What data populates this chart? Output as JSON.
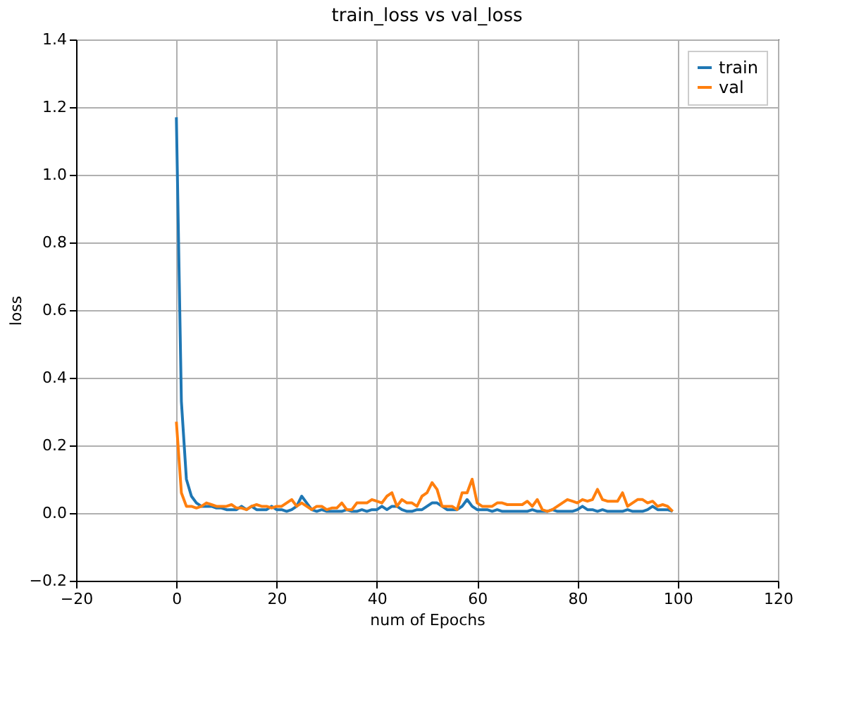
{
  "chart_data": {
    "type": "line",
    "title": "train_loss vs val_loss",
    "xlabel": "num of Epochs",
    "ylabel": "loss",
    "x": [
      0,
      1,
      2,
      3,
      4,
      5,
      6,
      7,
      8,
      9,
      10,
      11,
      12,
      13,
      14,
      15,
      16,
      17,
      18,
      19,
      20,
      21,
      22,
      23,
      24,
      25,
      26,
      27,
      28,
      29,
      30,
      31,
      32,
      33,
      34,
      35,
      36,
      37,
      38,
      39,
      40,
      41,
      42,
      43,
      44,
      45,
      46,
      47,
      48,
      49,
      50,
      51,
      52,
      53,
      54,
      55,
      56,
      57,
      58,
      59,
      60,
      61,
      62,
      63,
      64,
      65,
      66,
      67,
      68,
      69,
      70,
      71,
      72,
      73,
      74,
      75,
      76,
      77,
      78,
      79,
      80,
      81,
      82,
      83,
      84,
      85,
      86,
      87,
      88,
      89,
      90,
      91,
      92,
      93,
      94,
      95,
      96,
      97,
      98,
      99
    ],
    "series": [
      {
        "name": "train",
        "color": "#1f77b4",
        "values": [
          1.17,
          0.33,
          0.1,
          0.05,
          0.03,
          0.02,
          0.02,
          0.02,
          0.015,
          0.015,
          0.01,
          0.01,
          0.01,
          0.02,
          0.01,
          0.02,
          0.01,
          0.01,
          0.01,
          0.02,
          0.01,
          0.01,
          0.005,
          0.01,
          0.02,
          0.05,
          0.03,
          0.01,
          0.005,
          0.01,
          0.005,
          0.005,
          0.005,
          0.005,
          0.01,
          0.005,
          0.005,
          0.01,
          0.005,
          0.01,
          0.01,
          0.02,
          0.01,
          0.02,
          0.02,
          0.01,
          0.005,
          0.005,
          0.01,
          0.01,
          0.02,
          0.03,
          0.03,
          0.02,
          0.01,
          0.01,
          0.01,
          0.02,
          0.04,
          0.02,
          0.01,
          0.01,
          0.01,
          0.005,
          0.01,
          0.005,
          0.005,
          0.005,
          0.005,
          0.005,
          0.005,
          0.01,
          0.005,
          0.005,
          0.005,
          0.01,
          0.005,
          0.005,
          0.005,
          0.005,
          0.01,
          0.02,
          0.01,
          0.01,
          0.005,
          0.01,
          0.005,
          0.005,
          0.005,
          0.005,
          0.01,
          0.005,
          0.005,
          0.005,
          0.01,
          0.02,
          0.01,
          0.01,
          0.01,
          0.005
        ]
      },
      {
        "name": "val",
        "color": "#ff7f0e",
        "values": [
          0.27,
          0.06,
          0.02,
          0.02,
          0.015,
          0.02,
          0.03,
          0.025,
          0.02,
          0.02,
          0.02,
          0.025,
          0.015,
          0.015,
          0.01,
          0.02,
          0.025,
          0.02,
          0.02,
          0.015,
          0.02,
          0.02,
          0.03,
          0.04,
          0.02,
          0.03,
          0.02,
          0.01,
          0.02,
          0.02,
          0.01,
          0.015,
          0.015,
          0.03,
          0.01,
          0.01,
          0.03,
          0.03,
          0.03,
          0.04,
          0.035,
          0.03,
          0.05,
          0.06,
          0.02,
          0.04,
          0.03,
          0.03,
          0.02,
          0.05,
          0.06,
          0.09,
          0.07,
          0.02,
          0.02,
          0.02,
          0.01,
          0.06,
          0.06,
          0.1,
          0.03,
          0.02,
          0.02,
          0.02,
          0.03,
          0.03,
          0.025,
          0.025,
          0.025,
          0.025,
          0.035,
          0.02,
          0.04,
          0.01,
          0.005,
          0.01,
          0.02,
          0.03,
          0.04,
          0.035,
          0.03,
          0.04,
          0.035,
          0.04,
          0.07,
          0.04,
          0.035,
          0.035,
          0.035,
          0.06,
          0.02,
          0.03,
          0.04,
          0.04,
          0.03,
          0.035,
          0.02,
          0.025,
          0.02,
          0.005
        ]
      }
    ],
    "xlim": [
      -20,
      120
    ],
    "xticks": [
      -20,
      0,
      20,
      40,
      60,
      80,
      100,
      120
    ],
    "ylim": [
      -0.2,
      1.4
    ],
    "yticks": [
      -0.2,
      {
        "value": 0,
        "label": "0.0"
      },
      0.2,
      0.4,
      0.6,
      0.8,
      {
        "value": 1,
        "label": "1.0"
      },
      1.2,
      1.4
    ],
    "grid": true,
    "legend": "top right",
    "line_style": "solid",
    "marker": "none"
  }
}
